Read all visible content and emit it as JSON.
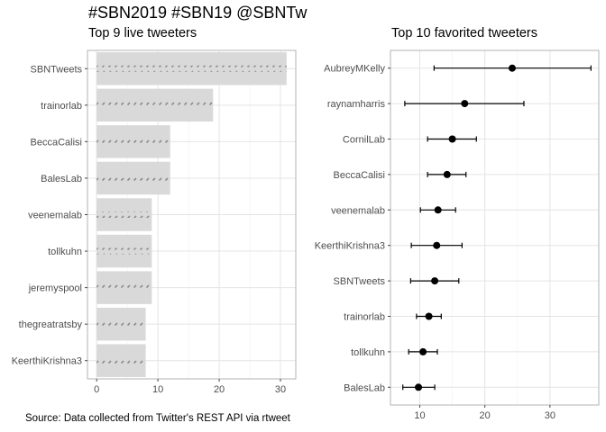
{
  "title": "#SBN2019 #SBN19 @SBNTw",
  "caption": "Source: Data collected from Twitter's REST API via rtweet",
  "chart_data": [
    {
      "type": "bar",
      "orientation": "horizontal",
      "title": "Top 9 live tweeters",
      "categories": [
        "SBNTweets",
        "trainorlab",
        "BeccaCalisi",
        "BalesLab",
        "veenemalab",
        "tollkuhn",
        "jeremyspool",
        "thegreatratsby",
        "KeerthiKrishna3"
      ],
      "values": [
        31,
        19,
        12,
        12,
        9,
        9,
        9,
        8,
        8
      ],
      "xlim": [
        -1.5,
        32.5
      ],
      "xticks": [
        0,
        10,
        20,
        30
      ],
      "grid": true,
      "bar_color": "#d9d9d9",
      "bar_pattern_color": "#8c8c8c"
    },
    {
      "type": "scatter",
      "subtype": "point-range",
      "title": "Top 10 favorited tweeters",
      "categories": [
        "AubreyMKelly",
        "raynamharris",
        "CornilLab",
        "BeccaCalisi",
        "veenemalab",
        "KeerthiKrishna3",
        "SBNTweets",
        "trainorlab",
        "tollkuhn",
        "BalesLab"
      ],
      "values": [
        24.2,
        16.9,
        15.0,
        14.2,
        12.8,
        12.6,
        12.3,
        11.4,
        10.5,
        9.8
      ],
      "lower": [
        12.2,
        7.7,
        11.2,
        11.2,
        10.1,
        8.7,
        8.6,
        9.5,
        8.3,
        7.4
      ],
      "upper": [
        36.3,
        26.0,
        18.7,
        17.1,
        15.5,
        16.5,
        16.0,
        13.3,
        12.7,
        12.3
      ],
      "xlim": [
        5.5,
        37.5
      ],
      "xticks": [
        10,
        20,
        30
      ],
      "grid": true,
      "point_color": "#000000"
    }
  ]
}
